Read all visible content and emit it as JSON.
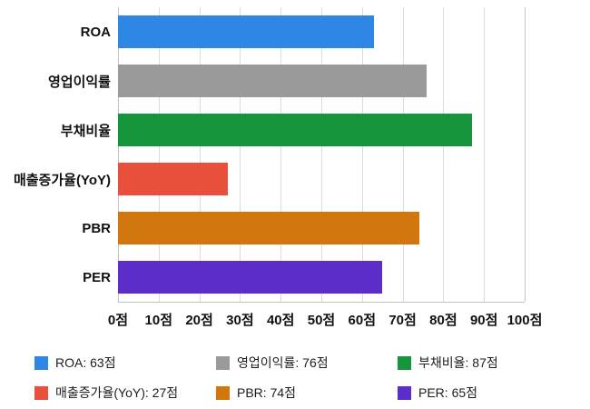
{
  "chart_data": {
    "type": "bar",
    "orientation": "horizontal",
    "title": "",
    "categories": [
      "ROA",
      "영업이익률",
      "부채비율",
      "매출증가율(YoY)",
      "PBR",
      "PER"
    ],
    "values": [
      63,
      76,
      87,
      27,
      74,
      65
    ],
    "unit": "점",
    "colors": [
      "#2E86E5",
      "#9A9A9A",
      "#17953C",
      "#E8503B",
      "#D2770E",
      "#5C2DC8"
    ],
    "xlim": [
      0,
      100
    ],
    "x_tick_step": 10,
    "x_tick_labels": [
      "0점",
      "10점",
      "20점",
      "30점",
      "40점",
      "50점",
      "60점",
      "70점",
      "80점",
      "90점",
      "100점"
    ],
    "grid": true,
    "legend_position": "bottom",
    "legend": [
      {
        "label": "ROA: 63점",
        "color": "#2E86E5"
      },
      {
        "label": "영업이익률: 76점",
        "color": "#9A9A9A"
      },
      {
        "label": "부채비율: 87점",
        "color": "#17953C"
      },
      {
        "label": "매출증가율(YoY): 27점",
        "color": "#E8503B"
      },
      {
        "label": "PBR: 74점",
        "color": "#D2770E"
      },
      {
        "label": "PER: 65점",
        "color": "#5C2DC8"
      }
    ]
  }
}
